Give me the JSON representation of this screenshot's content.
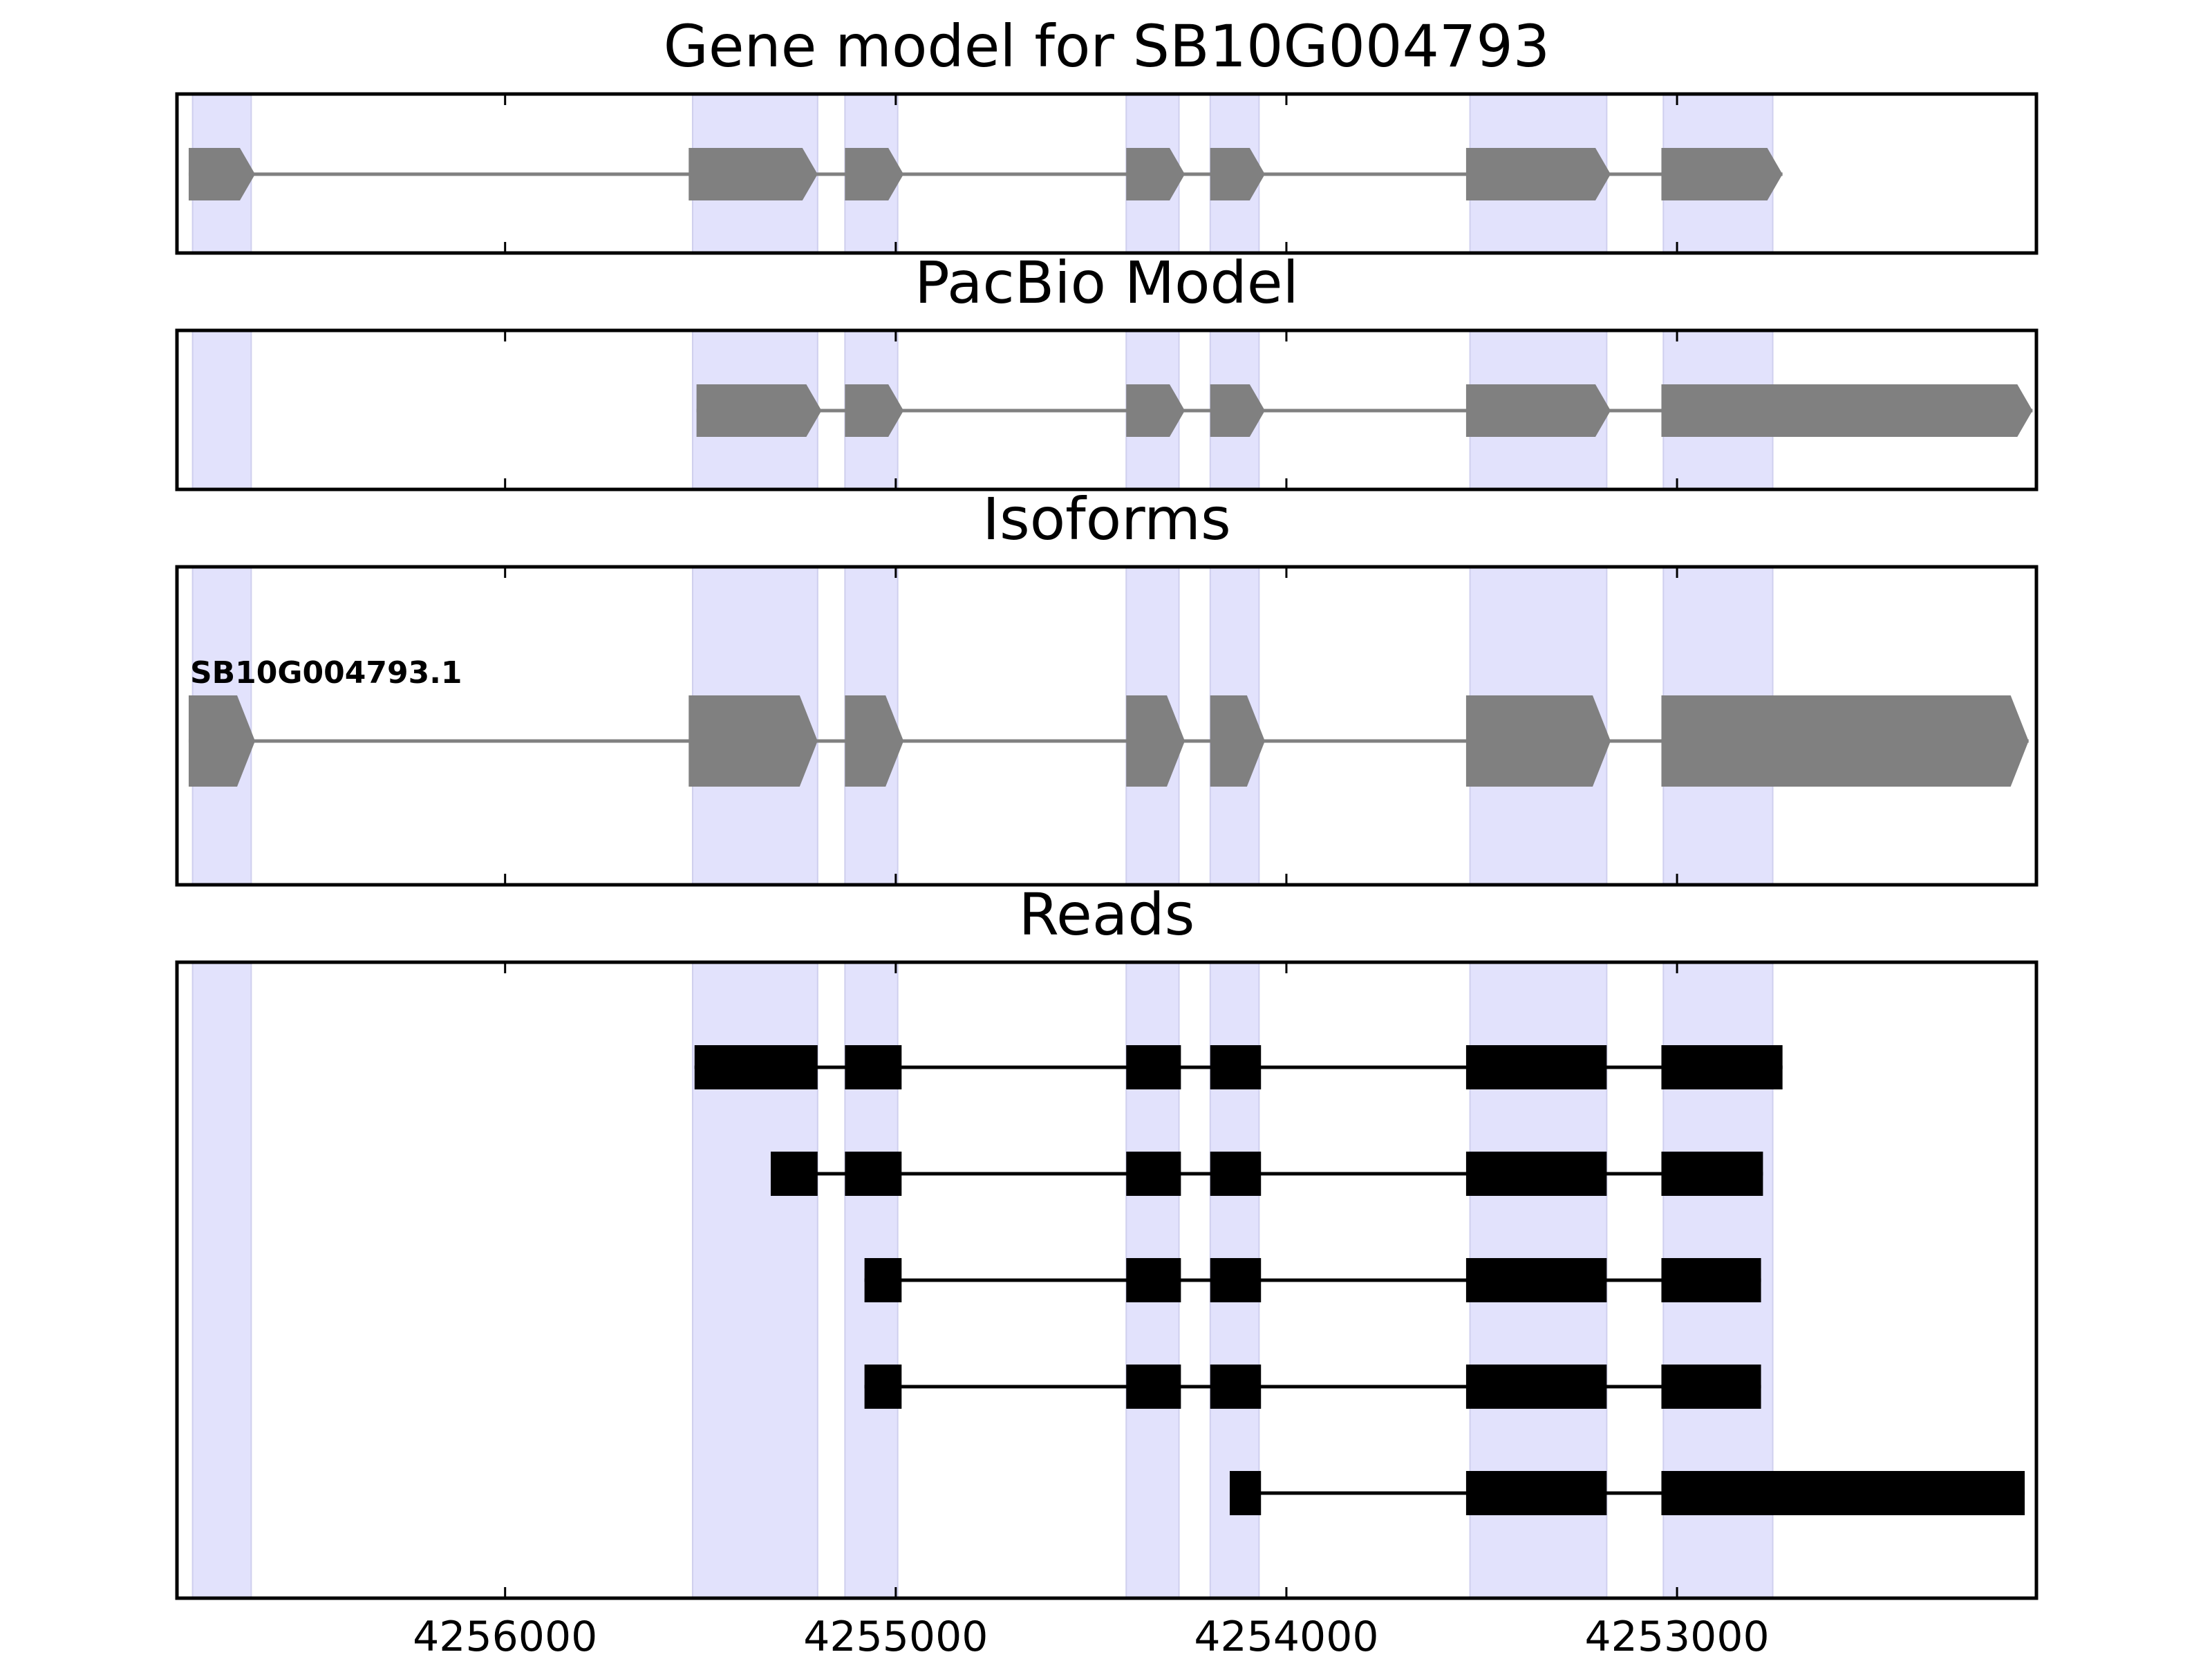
{
  "colors": {
    "exon": "#808080",
    "intron": "#808080",
    "read": "#000000",
    "highlight": "#e2e2fc",
    "highlight_edge": "#cfcfee",
    "frame": "#000000"
  },
  "chart_data": {
    "type": "gene_track",
    "x_axis": {
      "reversed": true,
      "range": [
        4256840,
        4252080
      ],
      "ticks": [
        4256000,
        4255000,
        4254000,
        4253000
      ],
      "tick_labels": [
        "4256000",
        "4255000",
        "4254000",
        "4253000"
      ]
    },
    "highlight_regions": [
      [
        4256800,
        4256650
      ],
      [
        4255520,
        4255200
      ],
      [
        4255130,
        4254995
      ],
      [
        4254410,
        4254275
      ],
      [
        4254195,
        4254070
      ],
      [
        4253530,
        4253180
      ],
      [
        4253035,
        4252755
      ]
    ],
    "panels": [
      {
        "key": "gene",
        "title": "Gene model for SB10G004793",
        "features": [
          {
            "label": "",
            "exons": [
              [
                4256810,
                4256640
              ],
              [
                4255530,
                4255200
              ],
              [
                4255130,
                4254980
              ],
              [
                4254410,
                4254260
              ],
              [
                4254195,
                4254055
              ],
              [
                4253540,
                4253170
              ],
              [
                4253040,
                4252730
              ]
            ]
          }
        ]
      },
      {
        "key": "pacbio",
        "title": "PacBio Model",
        "features": [
          {
            "label": "",
            "exons": [
              [
                4255510,
                4255190
              ],
              [
                4255130,
                4254980
              ],
              [
                4254410,
                4254260
              ],
              [
                4254195,
                4254055
              ],
              [
                4253540,
                4253170
              ],
              [
                4253040,
                4252090
              ]
            ]
          }
        ]
      },
      {
        "key": "isoforms",
        "title": "Isoforms",
        "features": [
          {
            "label": "SB10G004793.1",
            "exons": [
              [
                4256810,
                4256640
              ],
              [
                4255530,
                4255200
              ],
              [
                4255130,
                4254980
              ],
              [
                4254410,
                4254260
              ],
              [
                4254195,
                4254055
              ],
              [
                4253540,
                4253170
              ],
              [
                4253040,
                4252100
              ]
            ]
          }
        ]
      },
      {
        "key": "reads",
        "title": "Reads",
        "features": [
          {
            "label": "",
            "exons": [
              [
                4255515,
                4255200
              ],
              [
                4255130,
                4254985
              ],
              [
                4254410,
                4254270
              ],
              [
                4254195,
                4254065
              ],
              [
                4253540,
                4253180
              ],
              [
                4253040,
                4252730
              ]
            ]
          },
          {
            "label": "",
            "exons": [
              [
                4255320,
                4255200
              ],
              [
                4255130,
                4254985
              ],
              [
                4254410,
                4254270
              ],
              [
                4254195,
                4254065
              ],
              [
                4253540,
                4253180
              ],
              [
                4253040,
                4252780
              ]
            ]
          },
          {
            "label": "",
            "exons": [
              [
                4255080,
                4254985
              ],
              [
                4254410,
                4254270
              ],
              [
                4254195,
                4254065
              ],
              [
                4253540,
                4253180
              ],
              [
                4253040,
                4252785
              ]
            ]
          },
          {
            "label": "",
            "exons": [
              [
                4255080,
                4254985
              ],
              [
                4254410,
                4254270
              ],
              [
                4254195,
                4254065
              ],
              [
                4253540,
                4253180
              ],
              [
                4253040,
                4252785
              ]
            ]
          },
          {
            "label": "",
            "exons": [
              [
                4254145,
                4254065
              ],
              [
                4253540,
                4253180
              ],
              [
                4253040,
                4252110
              ]
            ]
          }
        ]
      }
    ]
  }
}
